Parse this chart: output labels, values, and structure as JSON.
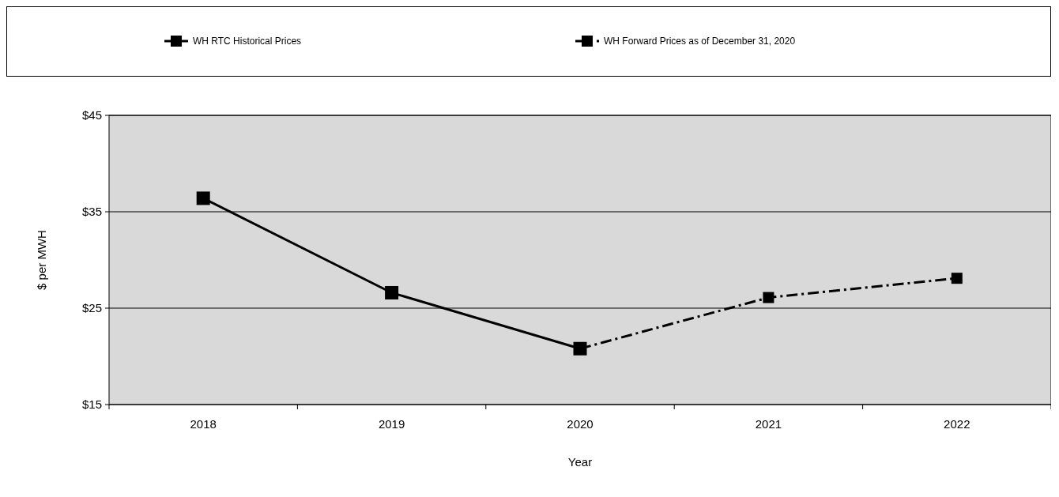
{
  "chart_data": {
    "type": "line",
    "xlabel": "Year",
    "ylabel": "$ per MWH",
    "categories": [
      "2018",
      "2019",
      "2020",
      "2021",
      "2022"
    ],
    "series": [
      {
        "name": "WH RTC Historical Prices",
        "color": "#000000",
        "line_style": "solid",
        "values": [
          36.4,
          26.6,
          20.8,
          null,
          null
        ]
      },
      {
        "name": "WH Forward Prices as of December 31, 2020",
        "color": "#000000",
        "line_style": "dashed",
        "values": [
          null,
          null,
          20.8,
          26.1,
          28.1
        ]
      }
    ],
    "ylim": [
      15,
      45
    ],
    "yticks": [
      {
        "value": 15,
        "label": "$15"
      },
      {
        "value": 25,
        "label": "$25"
      },
      {
        "value": 35,
        "label": "$35"
      },
      {
        "value": 45,
        "label": "$45"
      }
    ],
    "grid": "y",
    "legend": "top",
    "marker": "square"
  }
}
